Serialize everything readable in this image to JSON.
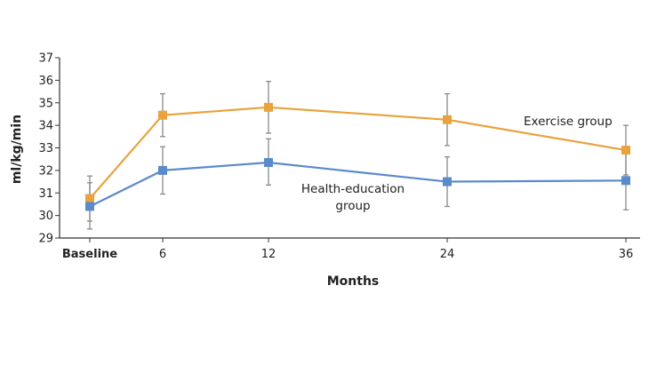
{
  "chart_data": {
    "type": "line",
    "categories": [
      "Baseline",
      "6",
      "12",
      "24",
      "36"
    ],
    "xlabel": "Months",
    "ylabel": "ml/kg/min",
    "ylim": [
      29,
      37
    ],
    "yticks": [
      29,
      30,
      31,
      32,
      33,
      34,
      35,
      36,
      37
    ],
    "grid": false,
    "series": [
      {
        "name": "Exercise group",
        "color": "#E8A33D",
        "values": [
          30.75,
          34.45,
          34.8,
          34.25,
          32.9
        ],
        "err_low": [
          29.75,
          33.5,
          33.65,
          33.1,
          31.8
        ],
        "err_high": [
          31.75,
          35.4,
          35.95,
          35.4,
          34.0
        ]
      },
      {
        "name": "Health-education group",
        "name_lines": [
          "Health-education",
          "group"
        ],
        "color": "#5B8ACB",
        "values": [
          30.4,
          32.0,
          32.35,
          31.5,
          31.55
        ],
        "err_low": [
          29.4,
          30.95,
          31.35,
          30.4,
          30.25
        ],
        "err_high": [
          31.45,
          33.05,
          33.4,
          32.6,
          32.85
        ]
      }
    ]
  }
}
